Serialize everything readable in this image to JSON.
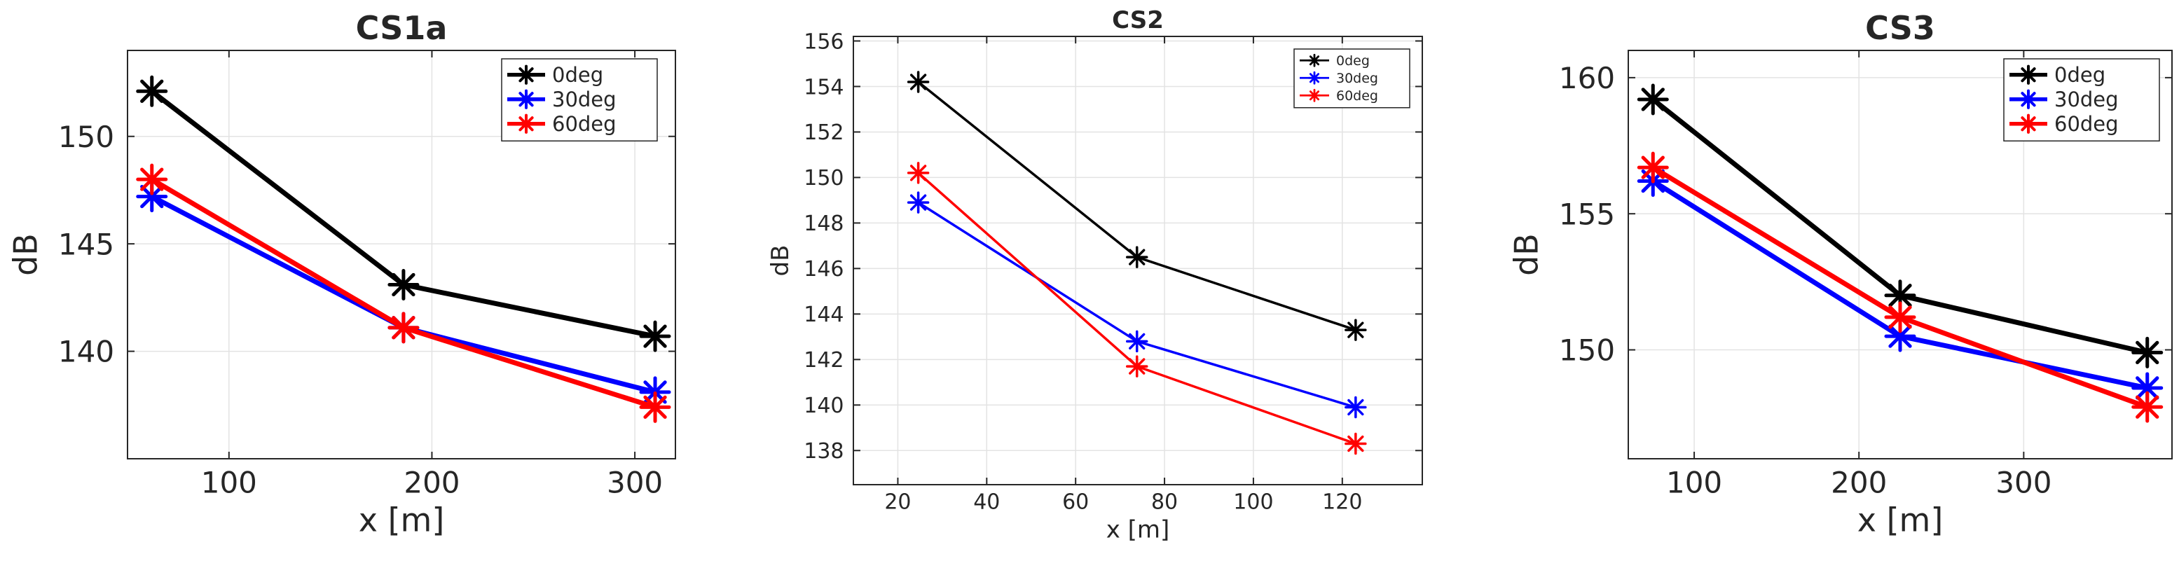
{
  "chart_data": [
    {
      "type": "line",
      "title": "CS1a",
      "xlabel": "x [m]",
      "ylabel": "dB",
      "xlim": [
        50,
        320
      ],
      "ylim": [
        135,
        154
      ],
      "xticks": [
        100,
        200,
        300
      ],
      "yticks": [
        140,
        145,
        150
      ],
      "grid": true,
      "legend": "top-right",
      "x": [
        62,
        186,
        310
      ],
      "series": [
        {
          "name": "0deg",
          "color": "#000000",
          "values": [
            152.1,
            143.1,
            140.7
          ]
        },
        {
          "name": "30deg",
          "color": "#0000ff",
          "values": [
            147.2,
            141.1,
            138.1
          ]
        },
        {
          "name": "60deg",
          "color": "#ff0000",
          "values": [
            148.0,
            141.1,
            137.4
          ]
        }
      ]
    },
    {
      "type": "line",
      "title": "CS2",
      "xlabel": "x [m]",
      "ylabel": "dB",
      "xlim": [
        10,
        138
      ],
      "ylim": [
        136.5,
        156.2
      ],
      "xticks": [
        20,
        40,
        60,
        80,
        100,
        120
      ],
      "yticks": [
        138,
        140,
        142,
        144,
        146,
        148,
        150,
        152,
        154,
        156
      ],
      "grid": true,
      "legend": "top-right",
      "x": [
        24.6,
        73.8,
        123
      ],
      "series": [
        {
          "name": "0deg",
          "color": "#000000",
          "values": [
            154.2,
            146.5,
            143.3
          ]
        },
        {
          "name": "30deg",
          "color": "#0000ff",
          "values": [
            148.9,
            142.8,
            139.9
          ]
        },
        {
          "name": "60deg",
          "color": "#ff0000",
          "values": [
            150.2,
            141.7,
            138.3
          ]
        }
      ]
    },
    {
      "type": "line",
      "title": "CS3",
      "xlabel": "x [m]",
      "ylabel": "dB",
      "xlim": [
        60,
        390
      ],
      "ylim": [
        146,
        161
      ],
      "xticks": [
        100,
        200,
        300
      ],
      "yticks": [
        150,
        155,
        160
      ],
      "grid": true,
      "legend": "top-right",
      "x": [
        75,
        225,
        375
      ],
      "series": [
        {
          "name": "0deg",
          "color": "#000000",
          "values": [
            159.2,
            152.0,
            149.9
          ]
        },
        {
          "name": "30deg",
          "color": "#0000ff",
          "values": [
            156.2,
            150.5,
            148.6
          ]
        },
        {
          "name": "60deg",
          "color": "#ff0000",
          "values": [
            156.7,
            151.2,
            147.9
          ]
        }
      ]
    }
  ]
}
